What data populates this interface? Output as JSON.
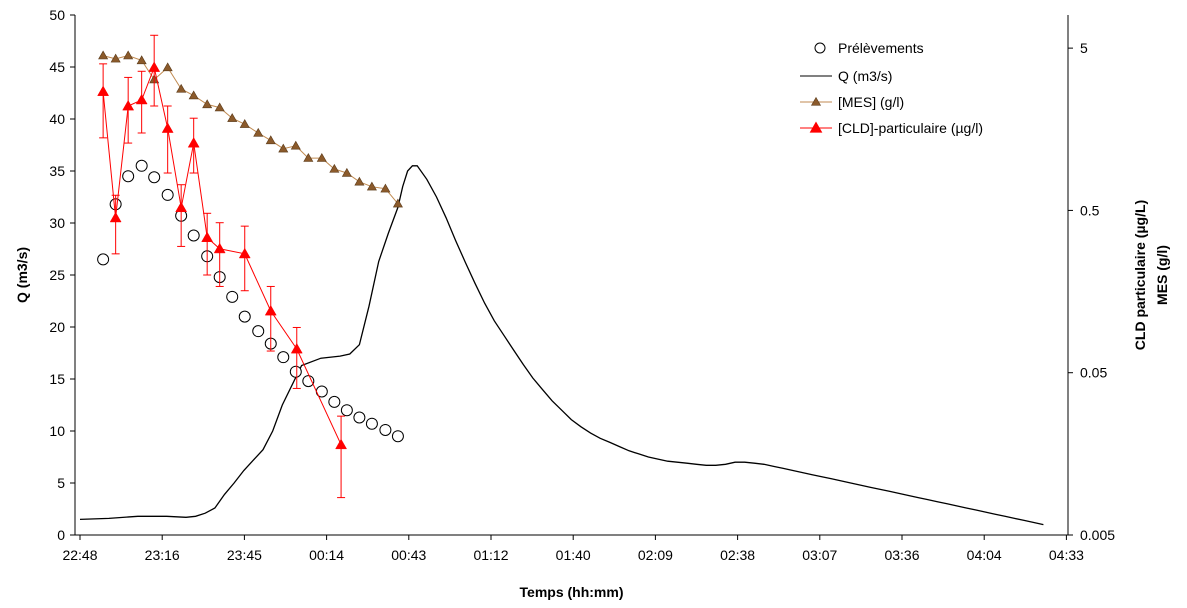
{
  "chart_data": {
    "type": "line",
    "xlabel": "Temps (hh:mm)",
    "ylabel": "Q (m3/s)",
    "y2label_line1": "CLD particulaire (µg/L)",
    "y2label_line2": "MES (g/l)",
    "x_tick_labels": [
      "22:48",
      "23:16",
      "23:45",
      "00:14",
      "00:43",
      "01:12",
      "01:40",
      "02:09",
      "02:38",
      "03:07",
      "03:36",
      "04:04",
      "04:33"
    ],
    "ylim": [
      0,
      50
    ],
    "y_ticks": [
      0,
      5,
      10,
      15,
      20,
      25,
      30,
      35,
      40,
      45,
      50
    ],
    "y2_scale": "log",
    "y2lim": [
      0.005,
      8
    ],
    "y2_ticks": [
      0.005,
      0.05,
      0.5,
      5
    ],
    "legend_position": "top-right",
    "colors": {
      "Q": "#000000",
      "mes_line": "#C08A50",
      "mes_marker": "#8B5A2B",
      "cld": "#FF0000",
      "axis": "#000000"
    },
    "series": [
      {
        "name": "Prélèvements",
        "key": "samples",
        "axis": "left",
        "marker": "open-circle",
        "x_minutes": [
          24,
          37,
          50,
          64,
          77,
          91,
          105,
          118,
          132,
          145,
          158,
          171,
          185,
          198,
          211,
          224,
          237,
          251,
          264,
          277,
          290,
          303,
          317,
          330
        ],
        "values": [
          26.5,
          31.8,
          34.5,
          35.5,
          34.4,
          32.7,
          30.7,
          28.8,
          26.8,
          24.8,
          22.9,
          21.0,
          19.6,
          18.4,
          17.1,
          15.7,
          14.8,
          13.8,
          12.8,
          12.0,
          11.3,
          10.7,
          10.1,
          9.5
        ]
      },
      {
        "name": "Q (m3/s)",
        "key": "Q",
        "axis": "left",
        "x_minutes": [
          0,
          30,
          60,
          90,
          110,
          120,
          130,
          140,
          150,
          160,
          170,
          180,
          190,
          200,
          210,
          230,
          250,
          270,
          280,
          290,
          300,
          310,
          320,
          330,
          335,
          340,
          345,
          350,
          360,
          370,
          380,
          390,
          400,
          410,
          420,
          430,
          440,
          450,
          460,
          470,
          480,
          490,
          500,
          510,
          520,
          530,
          540,
          550,
          560,
          570,
          580,
          590,
          600,
          610,
          620,
          630,
          640,
          650,
          660,
          670,
          680,
          690,
          700,
          710,
          720,
          730,
          740,
          750,
          760,
          770,
          780,
          790,
          800,
          810,
          820,
          830,
          840,
          850,
          860,
          870,
          880,
          890,
          900,
          910,
          920,
          930,
          940,
          950,
          960,
          970,
          980,
          990,
          1000
        ],
        "values": [
          1.5,
          1.6,
          1.8,
          1.8,
          1.7,
          1.8,
          2.1,
          2.6,
          3.9,
          5.0,
          6.2,
          7.2,
          8.2,
          10.0,
          12.5,
          16.3,
          17.0,
          17.2,
          17.4,
          18.3,
          22.0,
          26.3,
          29.0,
          31.5,
          33.5,
          35.0,
          35.5,
          35.5,
          34.2,
          32.5,
          30.5,
          28.3,
          26.2,
          24.2,
          22.3,
          20.6,
          19.2,
          17.8,
          16.4,
          15.1,
          14.0,
          12.9,
          12.0,
          11.1,
          10.4,
          9.8,
          9.3,
          8.9,
          8.5,
          8.1,
          7.8,
          7.5,
          7.3,
          7.1,
          7.0,
          6.9,
          6.8,
          6.7,
          6.7,
          6.8,
          7.0,
          7.0,
          6.9,
          6.8,
          6.6,
          6.4,
          6.2,
          6.0,
          5.8,
          5.6,
          5.4,
          5.2,
          5.0,
          4.8,
          4.6,
          4.4,
          4.2,
          4.0,
          3.8,
          3.6,
          3.4,
          3.2,
          3.0,
          2.8,
          2.6,
          2.4,
          2.2,
          2.0,
          1.8,
          1.6,
          1.4,
          1.2,
          1.0
        ]
      },
      {
        "name": "[MES] (g/l)",
        "key": "mes",
        "axis": "right",
        "marker": "triangle",
        "x_minutes": [
          24,
          37,
          50,
          64,
          77,
          91,
          105,
          118,
          132,
          145,
          158,
          171,
          185,
          198,
          211,
          224,
          237,
          251,
          264,
          277,
          290,
          303,
          317,
          330
        ],
        "values": [
          4.5,
          4.3,
          4.5,
          4.2,
          3.2,
          3.8,
          2.8,
          2.55,
          2.25,
          2.15,
          1.85,
          1.7,
          1.5,
          1.35,
          1.2,
          1.25,
          1.05,
          1.05,
          0.9,
          0.85,
          0.75,
          0.7,
          0.68,
          0.55
        ]
      },
      {
        "name": "[CLD]-particulaire (µg/l)",
        "key": "cld",
        "axis": "right",
        "marker": "triangle",
        "x_minutes": [
          24,
          37,
          50,
          64,
          77,
          91,
          105,
          118,
          132,
          145,
          171,
          198,
          225,
          271
        ],
        "values": [
          2.7,
          0.45,
          2.2,
          2.4,
          3.8,
          1.6,
          0.52,
          1.3,
          0.34,
          0.29,
          0.27,
          0.12,
          0.07,
          0.018
        ],
        "err_low": [
          1.4,
          0.27,
          1.3,
          1.5,
          2.2,
          0.85,
          0.3,
          0.85,
          0.2,
          0.17,
          0.16,
          0.068,
          0.04,
          0.0085
        ],
        "err_high": [
          4.0,
          0.62,
          3.3,
          3.6,
          6.0,
          2.2,
          0.72,
          1.85,
          0.48,
          0.42,
          0.4,
          0.17,
          0.095,
          0.027
        ]
      }
    ]
  }
}
